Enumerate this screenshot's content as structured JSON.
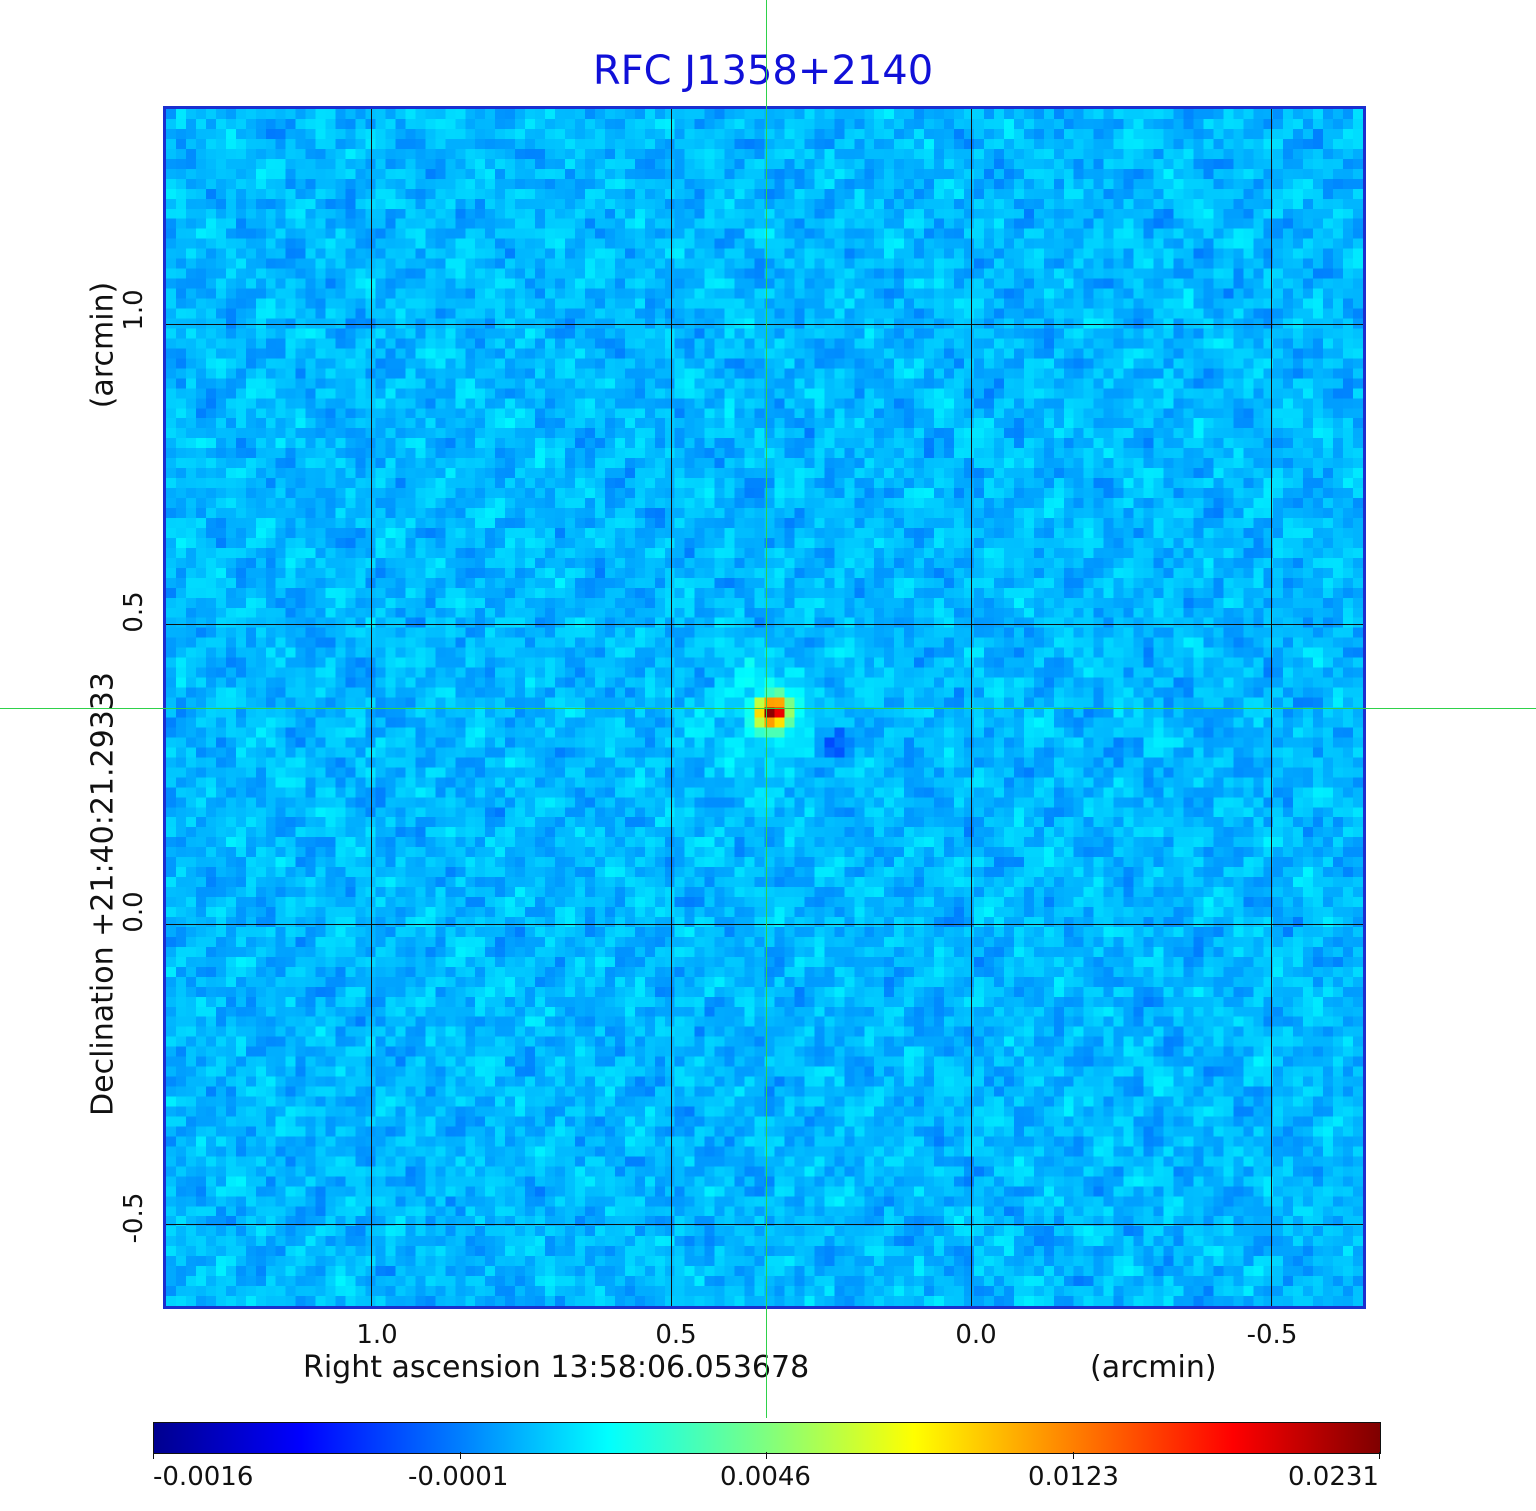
{
  "image": {
    "title": "RFC J1358+2140",
    "x_axis": {
      "label": "Right ascension  13:58:06.053678",
      "unit": "(arcmin)",
      "ticks": [
        "1.0",
        "0.5",
        "0.0",
        "-0.5"
      ]
    },
    "y_axis": {
      "label": "Declination  +21:40:21.29333",
      "unit": "(arcmin)",
      "ticks": [
        "1.0",
        "0.5",
        "0.0",
        "-0.5"
      ]
    },
    "colorbar": {
      "ticks": [
        "-0.0016",
        "-0.0001",
        "0.0046",
        "0.0123",
        "0.0231"
      ],
      "colormap": "jet"
    },
    "colors": {
      "title": "#1010d8",
      "frame": "#1a2fd0",
      "crosshair": "#2ed24a",
      "background_map": "#2a8cf0"
    }
  }
}
